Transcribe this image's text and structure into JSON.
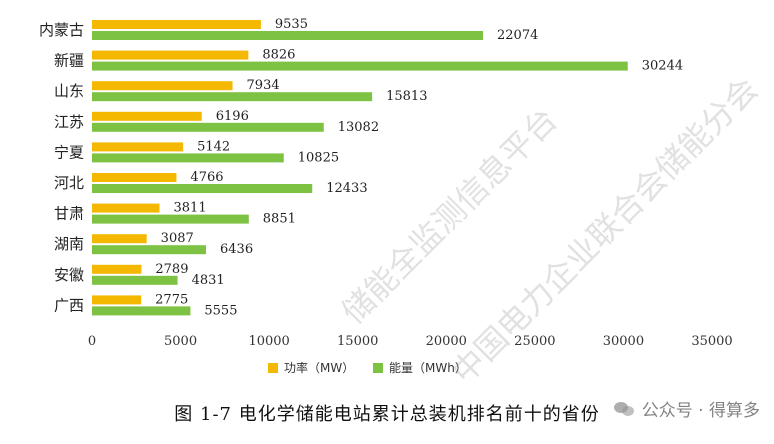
{
  "chart_data": {
    "type": "bar",
    "orientation": "horizontal",
    "categories": [
      "内蒙古",
      "新疆",
      "山东",
      "江苏",
      "宁夏",
      "河北",
      "甘肃",
      "湖南",
      "安徽",
      "广西"
    ],
    "series": [
      {
        "name": "功率（MW）",
        "color": "#F5B800",
        "values": [
          9535,
          8826,
          7934,
          6196,
          5142,
          4766,
          3811,
          3087,
          2789,
          2775
        ]
      },
      {
        "name": "能量（MWh）",
        "color": "#7DC242",
        "values": [
          22074,
          30244,
          15813,
          13082,
          10825,
          12433,
          8851,
          6436,
          4831,
          5555
        ]
      }
    ],
    "xlim": [
      0,
      35000
    ],
    "xticks": [
      "0",
      "5000",
      "10000",
      "15000",
      "20000",
      "25000",
      "30000",
      "35000"
    ],
    "legend_position": "bottom",
    "grid": false
  },
  "caption": "图 1-7 电化学储能电站累计总装机排名前十的省份",
  "watermark": {
    "line1": "储能全监测信息平台",
    "line2": "中国电力企业联合会储能分会"
  },
  "wechat": {
    "icon": "wechat-icon",
    "text": "公众号 · 得算多"
  }
}
